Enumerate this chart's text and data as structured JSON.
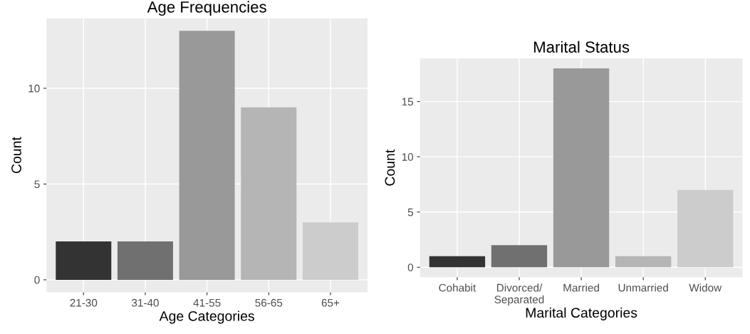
{
  "chart_data": [
    {
      "type": "bar",
      "title": "Age Frequencies",
      "xlabel": "Age Categories",
      "ylabel": "Count",
      "categories": [
        "21-30",
        "31-40",
        "41-55",
        "56-65",
        "65+"
      ],
      "values": [
        2,
        2,
        13,
        9,
        3
      ],
      "colors": [
        "#333333",
        "#707070",
        "#999999",
        "#b5b5b5",
        "#cccccc"
      ],
      "ylim": [
        -0.65,
        13.65
      ],
      "yticks": [
        0,
        5,
        10
      ],
      "grid": true,
      "legend": false
    },
    {
      "type": "bar",
      "title": "Marital Status",
      "xlabel": "Marital Categories",
      "ylabel": "Count",
      "categories": [
        "Cohabit",
        "Divorced/\nSeparated",
        "Married",
        "Unmarried",
        "Widow"
      ],
      "values": [
        1,
        2,
        18,
        1,
        7
      ],
      "colors": [
        "#333333",
        "#707070",
        "#999999",
        "#b5b5b5",
        "#cccccc"
      ],
      "ylim": [
        -0.9,
        18.9
      ],
      "yticks": [
        0,
        5,
        10,
        15
      ],
      "grid": true,
      "legend": false
    }
  ]
}
